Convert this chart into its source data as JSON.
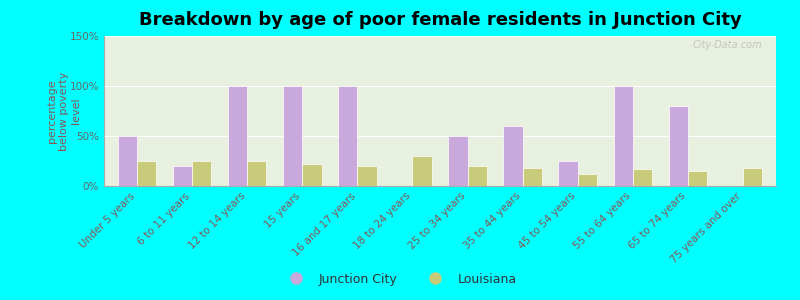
{
  "title": "Breakdown by age of poor female residents in Junction City",
  "categories": [
    "Under 5 years",
    "6 to 11 years",
    "12 to 14 years",
    "15 years",
    "16 and 17 years",
    "18 to 24 years",
    "25 to 34 years",
    "35 to 44 years",
    "45 to 54 years",
    "55 to 64 years",
    "65 to 74 years",
    "75 years and over"
  ],
  "junction_city": [
    50,
    20,
    100,
    100,
    100,
    0,
    50,
    60,
    25,
    100,
    80,
    0
  ],
  "louisiana": [
    25,
    25,
    25,
    22,
    20,
    30,
    20,
    18,
    12,
    17,
    15,
    18
  ],
  "jc_color": "#c9a8dc",
  "la_color": "#c8cc7a",
  "bg_color": "#00ffff",
  "plot_bg": "#e8f0e0",
  "ylabel": "percentage\nbelow poverty\nlevel",
  "ylim": [
    0,
    150
  ],
  "yticks": [
    0,
    50,
    100,
    150
  ],
  "ytick_labels": [
    "0%",
    "50%",
    "100%",
    "150%"
  ],
  "bar_width": 0.35,
  "legend_labels": [
    "Junction City",
    "Louisiana"
  ],
  "title_fontsize": 13,
  "axis_label_fontsize": 8,
  "tick_fontsize": 7.5,
  "label_color": "#885555",
  "watermark": "City-Data.com"
}
